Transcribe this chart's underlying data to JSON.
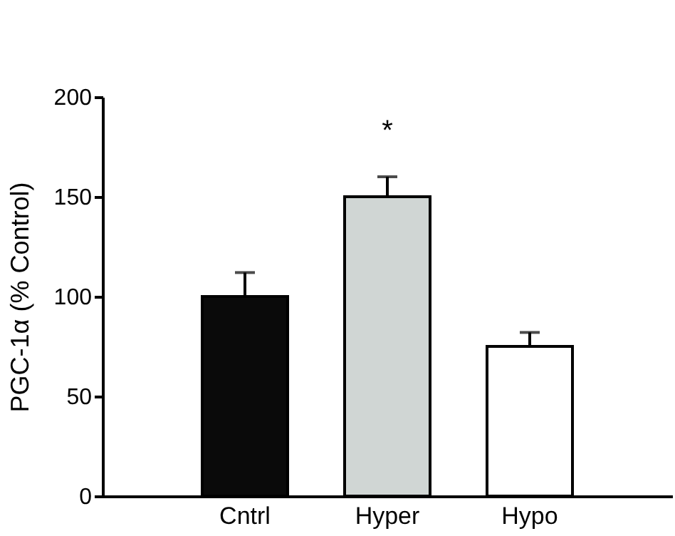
{
  "chart_data": {
    "type": "bar",
    "ylabel": "PGC-1α (% Control)",
    "categories": [
      "Cntrl",
      "Hyper",
      "Hypo"
    ],
    "values": [
      100,
      150,
      75
    ],
    "colors": [
      "#0a0a0a",
      "#d0d6d4",
      "#ffffff"
    ],
    "errors": [
      [
        100,
        112
      ],
      [
        150,
        160
      ],
      [
        75,
        82
      ]
    ],
    "ylim": [
      0,
      200
    ],
    "yticks": [
      0,
      50,
      100,
      150,
      200
    ],
    "grid": false,
    "annotations": [
      "*"
    ]
  }
}
